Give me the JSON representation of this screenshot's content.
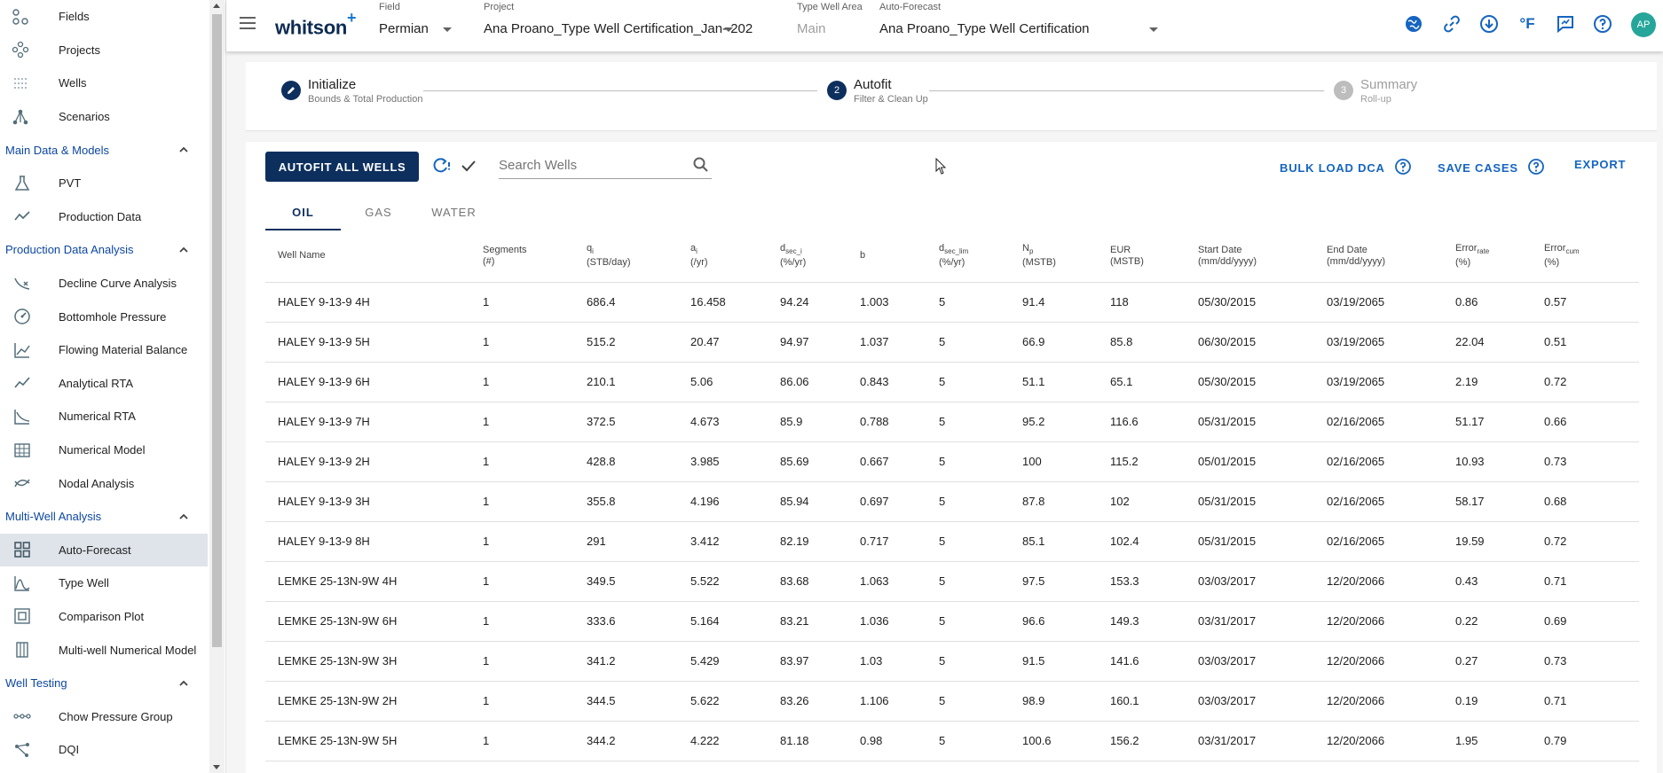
{
  "sidebar": {
    "top_items": [
      {
        "label": "Fields",
        "icon": "fields-icon"
      },
      {
        "label": "Projects",
        "icon": "projects-icon"
      },
      {
        "label": "Wells",
        "icon": "wells-icon"
      },
      {
        "label": "Scenarios",
        "icon": "scenarios-icon"
      }
    ],
    "sections": [
      {
        "label": "Main Data & Models",
        "items": [
          "PVT",
          "Production Data"
        ]
      },
      {
        "label": "Production Data Analysis",
        "items": [
          "Decline Curve Analysis",
          "Bottomhole Pressure",
          "Flowing Material Balance",
          "Analytical RTA",
          "Numerical RTA",
          "Numerical Model",
          "Nodal Analysis"
        ]
      },
      {
        "label": "Multi-Well Analysis",
        "items": [
          "Auto-Forecast",
          "Type Well",
          "Comparison Plot",
          "Multi-well Numerical Model"
        ]
      },
      {
        "label": "Well Testing",
        "items": [
          "Chow Pressure Group",
          "DQI"
        ]
      }
    ],
    "active_item": "Auto-Forecast"
  },
  "header": {
    "logo": "whitson",
    "logo_plus": "+",
    "field_label": "Field",
    "field_value": "Permian",
    "project_label": "Project",
    "project_value": "Ana Proano_Type Well Certification_Jan- 202",
    "type_well_area_label": "Type Well Area",
    "type_well_area_value": "Main",
    "auto_forecast_label": "Auto-Forecast",
    "auto_forecast_value": "Ana Proano_Type Well Certification",
    "unit_label": "°F",
    "avatar_initials": "AP",
    "accent_color": "#1565c0"
  },
  "stepper": {
    "steps": [
      {
        "number": "",
        "title": "Initialize",
        "subtitle": "Bounds & Total Production"
      },
      {
        "number": "2",
        "title": "Autofit",
        "subtitle": "Filter & Clean Up"
      },
      {
        "number": "3",
        "title": "Summary",
        "subtitle": "Roll-up"
      }
    ]
  },
  "toolbar": {
    "autofit_label": "AUTOFIT ALL WELLS",
    "search_placeholder": "Search Wells",
    "bulk_load_label": "BULK LOAD DCA",
    "save_cases_label": "SAVE CASES",
    "export_label": "EXPORT"
  },
  "tabs": [
    "OIL",
    "GAS",
    "WATER"
  ],
  "active_tab": "OIL",
  "table": {
    "headers": [
      {
        "main": "Well Name",
        "sub": "",
        "unit": ""
      },
      {
        "main": "Segments",
        "sub": "",
        "unit": "(#)"
      },
      {
        "main": "q",
        "sub": "i",
        "unit": "(STB/day)"
      },
      {
        "main": "a",
        "sub": "i",
        "unit": "(/yr)"
      },
      {
        "main": "d",
        "sub": "sec_i",
        "unit": "(%/yr)"
      },
      {
        "main": "b",
        "sub": "",
        "unit": ""
      },
      {
        "main": "d",
        "sub": "sec_lim",
        "unit": "(%/yr)"
      },
      {
        "main": "N",
        "sub": "p",
        "unit": "(MSTB)"
      },
      {
        "main": "EUR",
        "sub": "",
        "unit": "(MSTB)"
      },
      {
        "main": "Start Date",
        "sub": "",
        "unit": "(mm/dd/yyyy)"
      },
      {
        "main": "End Date",
        "sub": "",
        "unit": "(mm/dd/yyyy)"
      },
      {
        "main": "Error",
        "sub": "rate",
        "unit": "(%)"
      },
      {
        "main": "Error",
        "sub": "cum",
        "unit": "(%)"
      }
    ],
    "rows": [
      [
        "HALEY 9-13-9 4H",
        "1",
        "686.4",
        "16.458",
        "94.24",
        "1.003",
        "5",
        "91.4",
        "118",
        "05/30/2015",
        "03/19/2065",
        "0.86",
        "0.57"
      ],
      [
        "HALEY 9-13-9 5H",
        "1",
        "515.2",
        "20.47",
        "94.97",
        "1.037",
        "5",
        "66.9",
        "85.8",
        "06/30/2015",
        "03/19/2065",
        "22.04",
        "0.51"
      ],
      [
        "HALEY 9-13-9 6H",
        "1",
        "210.1",
        "5.06",
        "86.06",
        "0.843",
        "5",
        "51.1",
        "65.1",
        "05/30/2015",
        "03/19/2065",
        "2.19",
        "0.72"
      ],
      [
        "HALEY 9-13-9 7H",
        "1",
        "372.5",
        "4.673",
        "85.9",
        "0.788",
        "5",
        "95.2",
        "116.6",
        "05/31/2015",
        "02/16/2065",
        "51.17",
        "0.66"
      ],
      [
        "HALEY 9-13-9 2H",
        "1",
        "428.8",
        "3.985",
        "85.69",
        "0.667",
        "5",
        "100",
        "115.2",
        "05/01/2015",
        "02/16/2065",
        "10.93",
        "0.73"
      ],
      [
        "HALEY 9-13-9 3H",
        "1",
        "355.8",
        "4.196",
        "85.94",
        "0.697",
        "5",
        "87.8",
        "102",
        "05/31/2015",
        "02/16/2065",
        "58.17",
        "0.68"
      ],
      [
        "HALEY 9-13-9 8H",
        "1",
        "291",
        "3.412",
        "82.19",
        "0.717",
        "5",
        "85.1",
        "102.4",
        "05/31/2015",
        "02/16/2065",
        "19.59",
        "0.72"
      ],
      [
        "LEMKE 25-13N-9W 4H",
        "1",
        "349.5",
        "5.522",
        "83.68",
        "1.063",
        "5",
        "97.5",
        "153.3",
        "03/03/2017",
        "12/20/2066",
        "0.43",
        "0.71"
      ],
      [
        "LEMKE 25-13N-9W 6H",
        "1",
        "333.6",
        "5.164",
        "83.21",
        "1.036",
        "5",
        "96.6",
        "149.3",
        "03/31/2017",
        "12/20/2066",
        "0.22",
        "0.69"
      ],
      [
        "LEMKE 25-13N-9W 3H",
        "1",
        "341.2",
        "5.429",
        "83.97",
        "1.03",
        "5",
        "91.5",
        "141.6",
        "03/03/2017",
        "12/20/2066",
        "0.27",
        "0.73"
      ],
      [
        "LEMKE 25-13N-9W 2H",
        "1",
        "344.5",
        "5.622",
        "83.26",
        "1.106",
        "5",
        "98.9",
        "160.1",
        "03/03/2017",
        "12/20/2066",
        "0.19",
        "0.71"
      ],
      [
        "LEMKE 25-13N-9W 5H",
        "1",
        "344.2",
        "4.222",
        "81.18",
        "0.98",
        "5",
        "100.6",
        "156.2",
        "03/31/2017",
        "12/20/2066",
        "1.95",
        "0.79"
      ]
    ]
  }
}
